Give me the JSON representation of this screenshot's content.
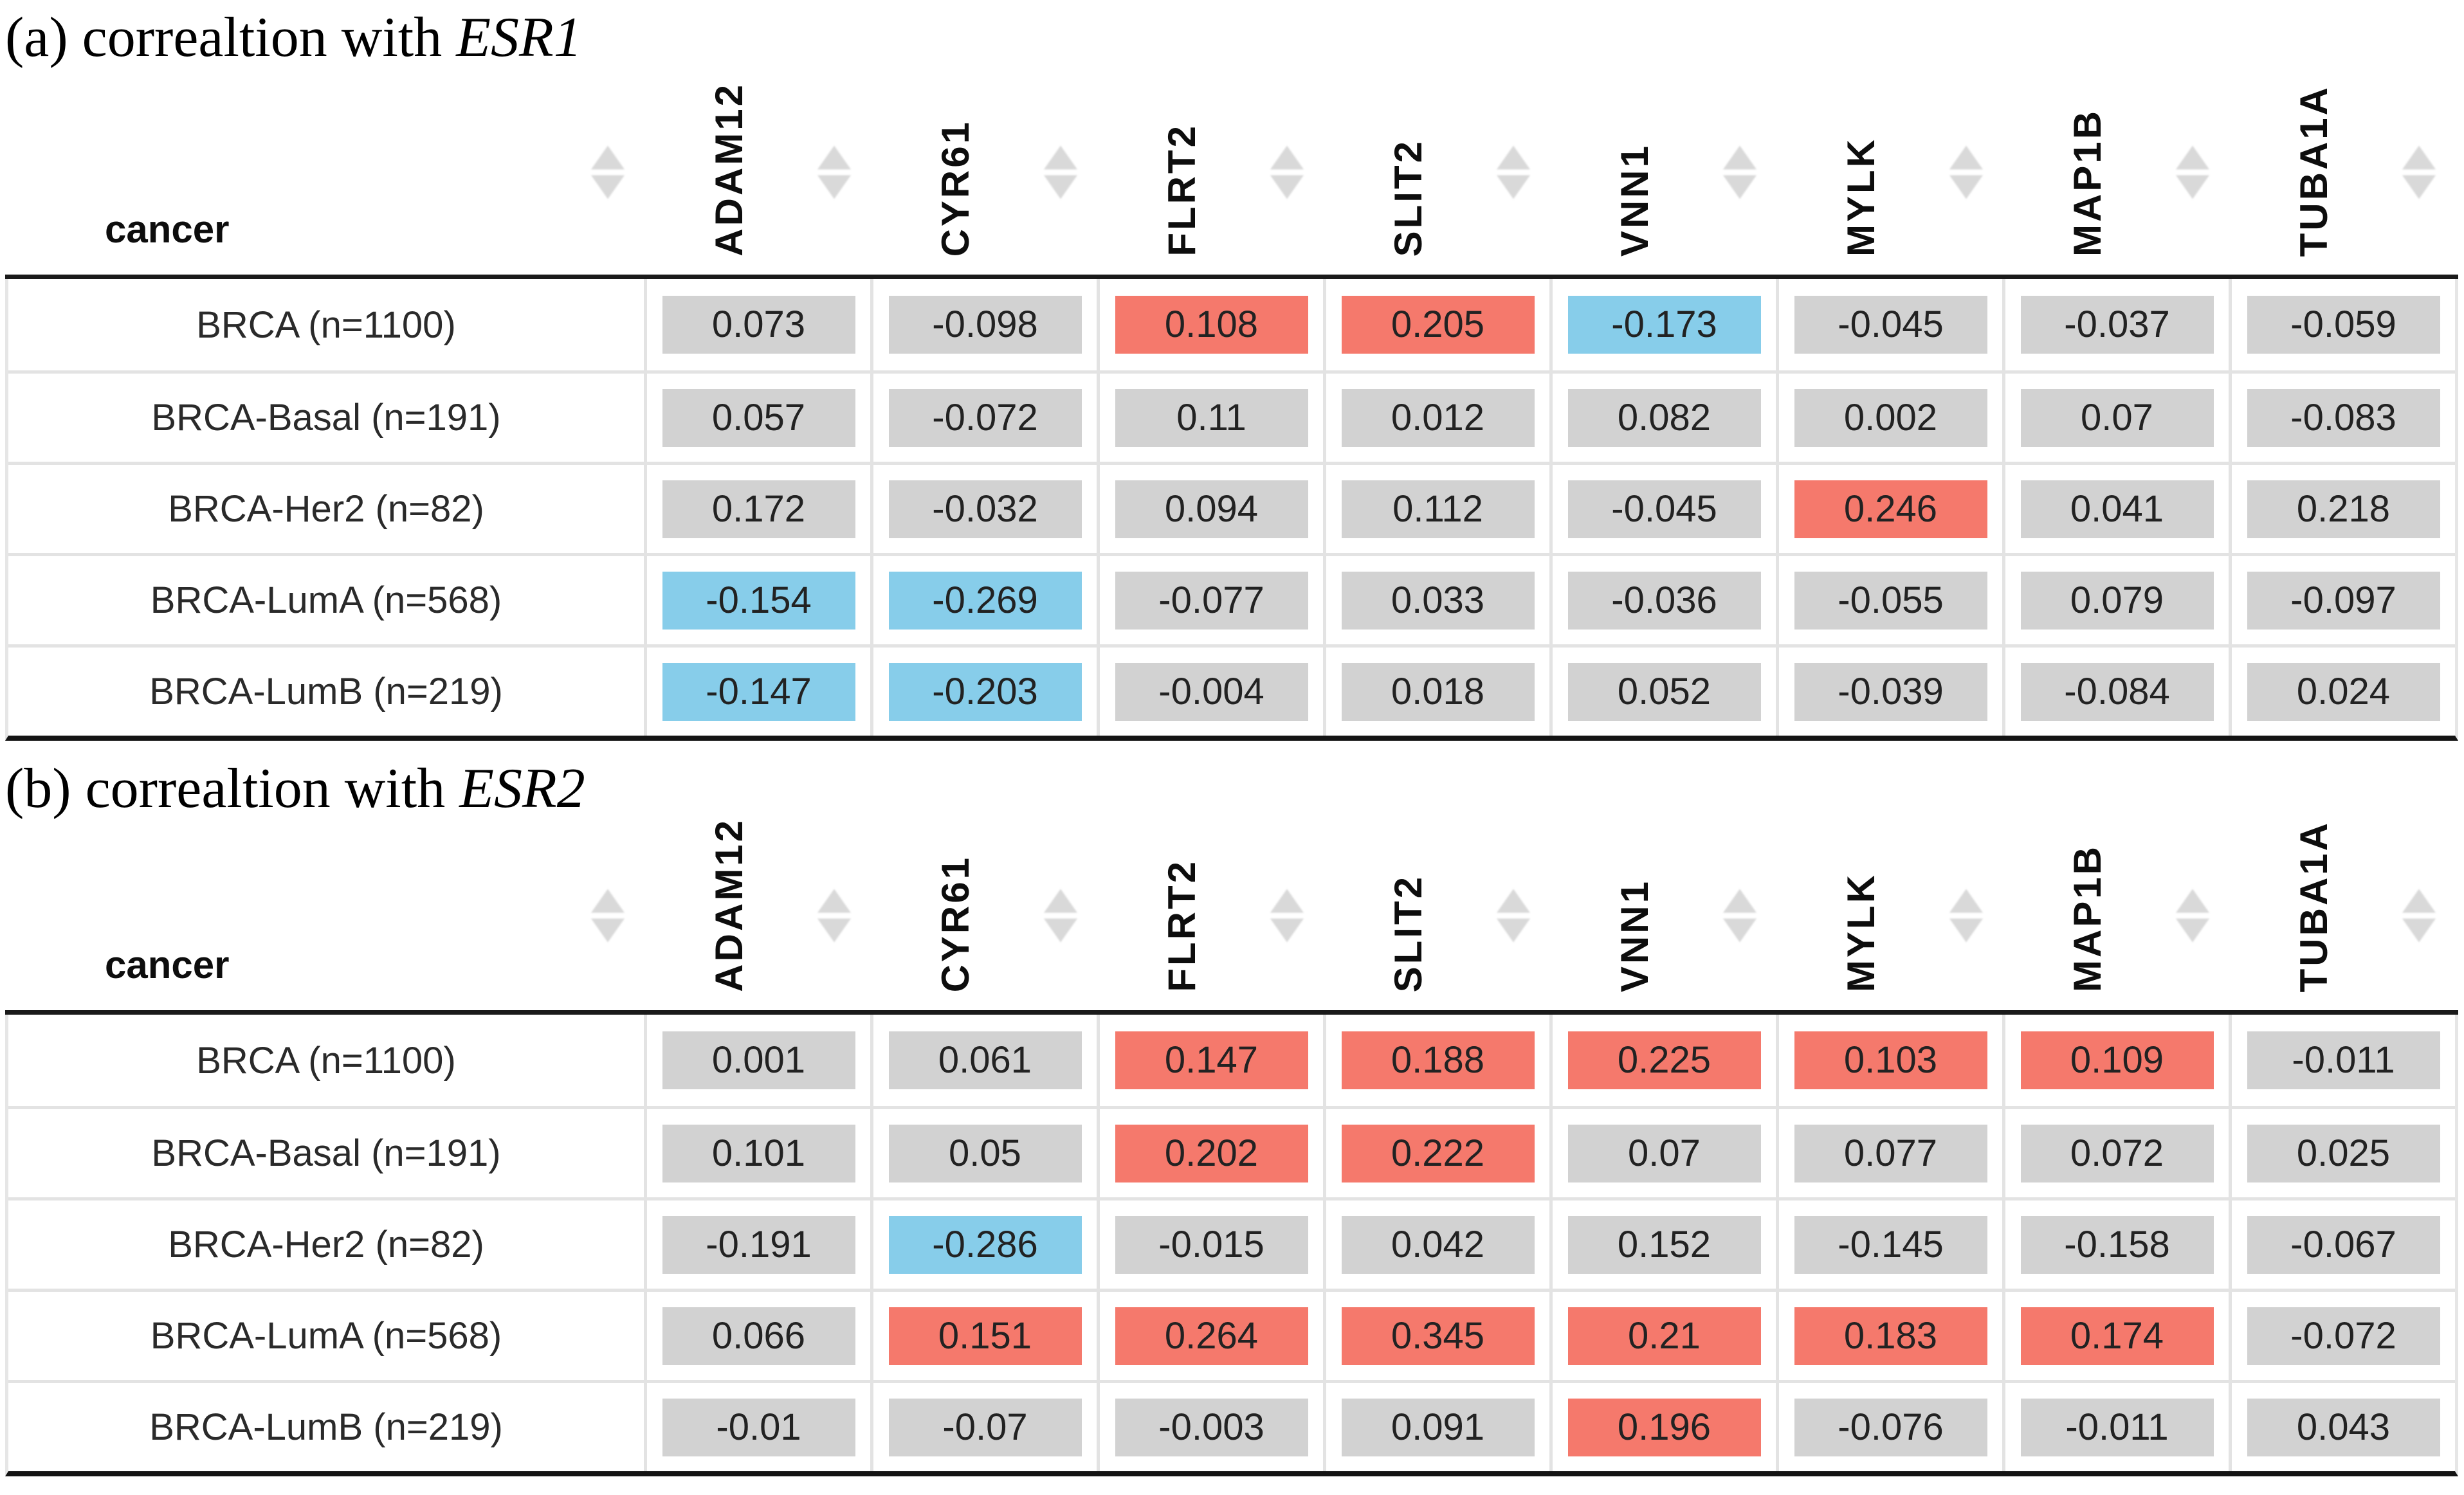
{
  "colors": {
    "badge_neutral": "#d2d2d2",
    "badge_positive": "#f5796c",
    "badge_negative": "#87cdea",
    "header_rule": "#1a1a1a",
    "bottom_rule": "#141414",
    "grid_line": "#e3e3e3",
    "sort_icon": "#d9d9d9"
  },
  "icons": {
    "sort": "sort-up-down-arrows"
  },
  "tables": [
    {
      "panel": "a",
      "title_prefix": "(a) correaltion with ",
      "title_gene": "ESR1",
      "row_header_label": "cancer",
      "columns": [
        "ADAM12",
        "CYR61",
        "FLRT2",
        "SLIT2",
        "VNN1",
        "MYLK",
        "MAP1B",
        "TUBA1A"
      ],
      "rows": [
        {
          "label": "BRCA (n=1100)",
          "values": [
            "0.073",
            "-0.098",
            "0.108",
            "0.205",
            "-0.173",
            "-0.045",
            "-0.037",
            "-0.059"
          ],
          "states": [
            "neutral",
            "neutral",
            "positive",
            "positive",
            "negative",
            "neutral",
            "neutral",
            "neutral"
          ]
        },
        {
          "label": "BRCA-Basal (n=191)",
          "values": [
            "0.057",
            "-0.072",
            "0.11",
            "0.012",
            "0.082",
            "0.002",
            "0.07",
            "-0.083"
          ],
          "states": [
            "neutral",
            "neutral",
            "neutral",
            "neutral",
            "neutral",
            "neutral",
            "neutral",
            "neutral"
          ]
        },
        {
          "label": "BRCA-Her2 (n=82)",
          "values": [
            "0.172",
            "-0.032",
            "0.094",
            "0.112",
            "-0.045",
            "0.246",
            "0.041",
            "0.218"
          ],
          "states": [
            "neutral",
            "neutral",
            "neutral",
            "neutral",
            "neutral",
            "positive",
            "neutral",
            "neutral"
          ]
        },
        {
          "label": "BRCA-LumA (n=568)",
          "values": [
            "-0.154",
            "-0.269",
            "-0.077",
            "0.033",
            "-0.036",
            "-0.055",
            "0.079",
            "-0.097"
          ],
          "states": [
            "negative",
            "negative",
            "neutral",
            "neutral",
            "neutral",
            "neutral",
            "neutral",
            "neutral"
          ]
        },
        {
          "label": "BRCA-LumB (n=219)",
          "values": [
            "-0.147",
            "-0.203",
            "-0.004",
            "0.018",
            "0.052",
            "-0.039",
            "-0.084",
            "0.024"
          ],
          "states": [
            "negative",
            "negative",
            "neutral",
            "neutral",
            "neutral",
            "neutral",
            "neutral",
            "neutral"
          ]
        }
      ]
    },
    {
      "panel": "b",
      "title_prefix": "(b) correaltion with ",
      "title_gene": "ESR2",
      "row_header_label": "cancer",
      "columns": [
        "ADAM12",
        "CYR61",
        "FLRT2",
        "SLIT2",
        "VNN1",
        "MYLK",
        "MAP1B",
        "TUBA1A"
      ],
      "rows": [
        {
          "label": "BRCA (n=1100)",
          "values": [
            "0.001",
            "0.061",
            "0.147",
            "0.188",
            "0.225",
            "0.103",
            "0.109",
            "-0.011"
          ],
          "states": [
            "neutral",
            "neutral",
            "positive",
            "positive",
            "positive",
            "positive",
            "positive",
            "neutral"
          ]
        },
        {
          "label": "BRCA-Basal (n=191)",
          "values": [
            "0.101",
            "0.05",
            "0.202",
            "0.222",
            "0.07",
            "0.077",
            "0.072",
            "0.025"
          ],
          "states": [
            "neutral",
            "neutral",
            "positive",
            "positive",
            "neutral",
            "neutral",
            "neutral",
            "neutral"
          ]
        },
        {
          "label": "BRCA-Her2 (n=82)",
          "values": [
            "-0.191",
            "-0.286",
            "-0.015",
            "0.042",
            "0.152",
            "-0.145",
            "-0.158",
            "-0.067"
          ],
          "states": [
            "neutral",
            "negative",
            "neutral",
            "neutral",
            "neutral",
            "neutral",
            "neutral",
            "neutral"
          ]
        },
        {
          "label": "BRCA-LumA (n=568)",
          "values": [
            "0.066",
            "0.151",
            "0.264",
            "0.345",
            "0.21",
            "0.183",
            "0.174",
            "-0.072"
          ],
          "states": [
            "neutral",
            "positive",
            "positive",
            "positive",
            "positive",
            "positive",
            "positive",
            "neutral"
          ]
        },
        {
          "label": "BRCA-LumB (n=219)",
          "values": [
            "-0.01",
            "-0.07",
            "-0.003",
            "0.091",
            "0.196",
            "-0.076",
            "-0.011",
            "0.043"
          ],
          "states": [
            "neutral",
            "neutral",
            "neutral",
            "neutral",
            "positive",
            "neutral",
            "neutral",
            "neutral"
          ]
        }
      ]
    }
  ]
}
